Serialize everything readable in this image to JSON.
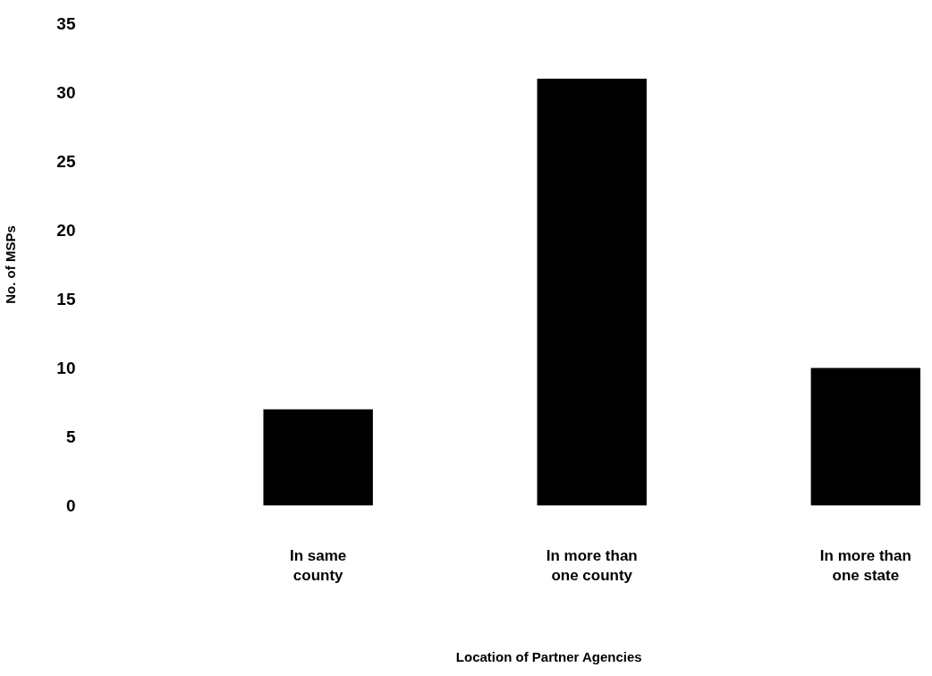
{
  "chart_data": {
    "type": "bar",
    "xlabel": "Location of Partner Agencies",
    "ylabel": "No. of MSPs",
    "categories": [
      "In same county",
      "In more than one county",
      "In more than one state"
    ],
    "values": [
      7,
      31,
      10
    ],
    "color": "#000000",
    "ylim": [
      0,
      35
    ],
    "yticks": [
      0,
      5,
      10,
      15,
      20,
      25,
      30,
      35
    ],
    "grid": false,
    "legend": false
  }
}
